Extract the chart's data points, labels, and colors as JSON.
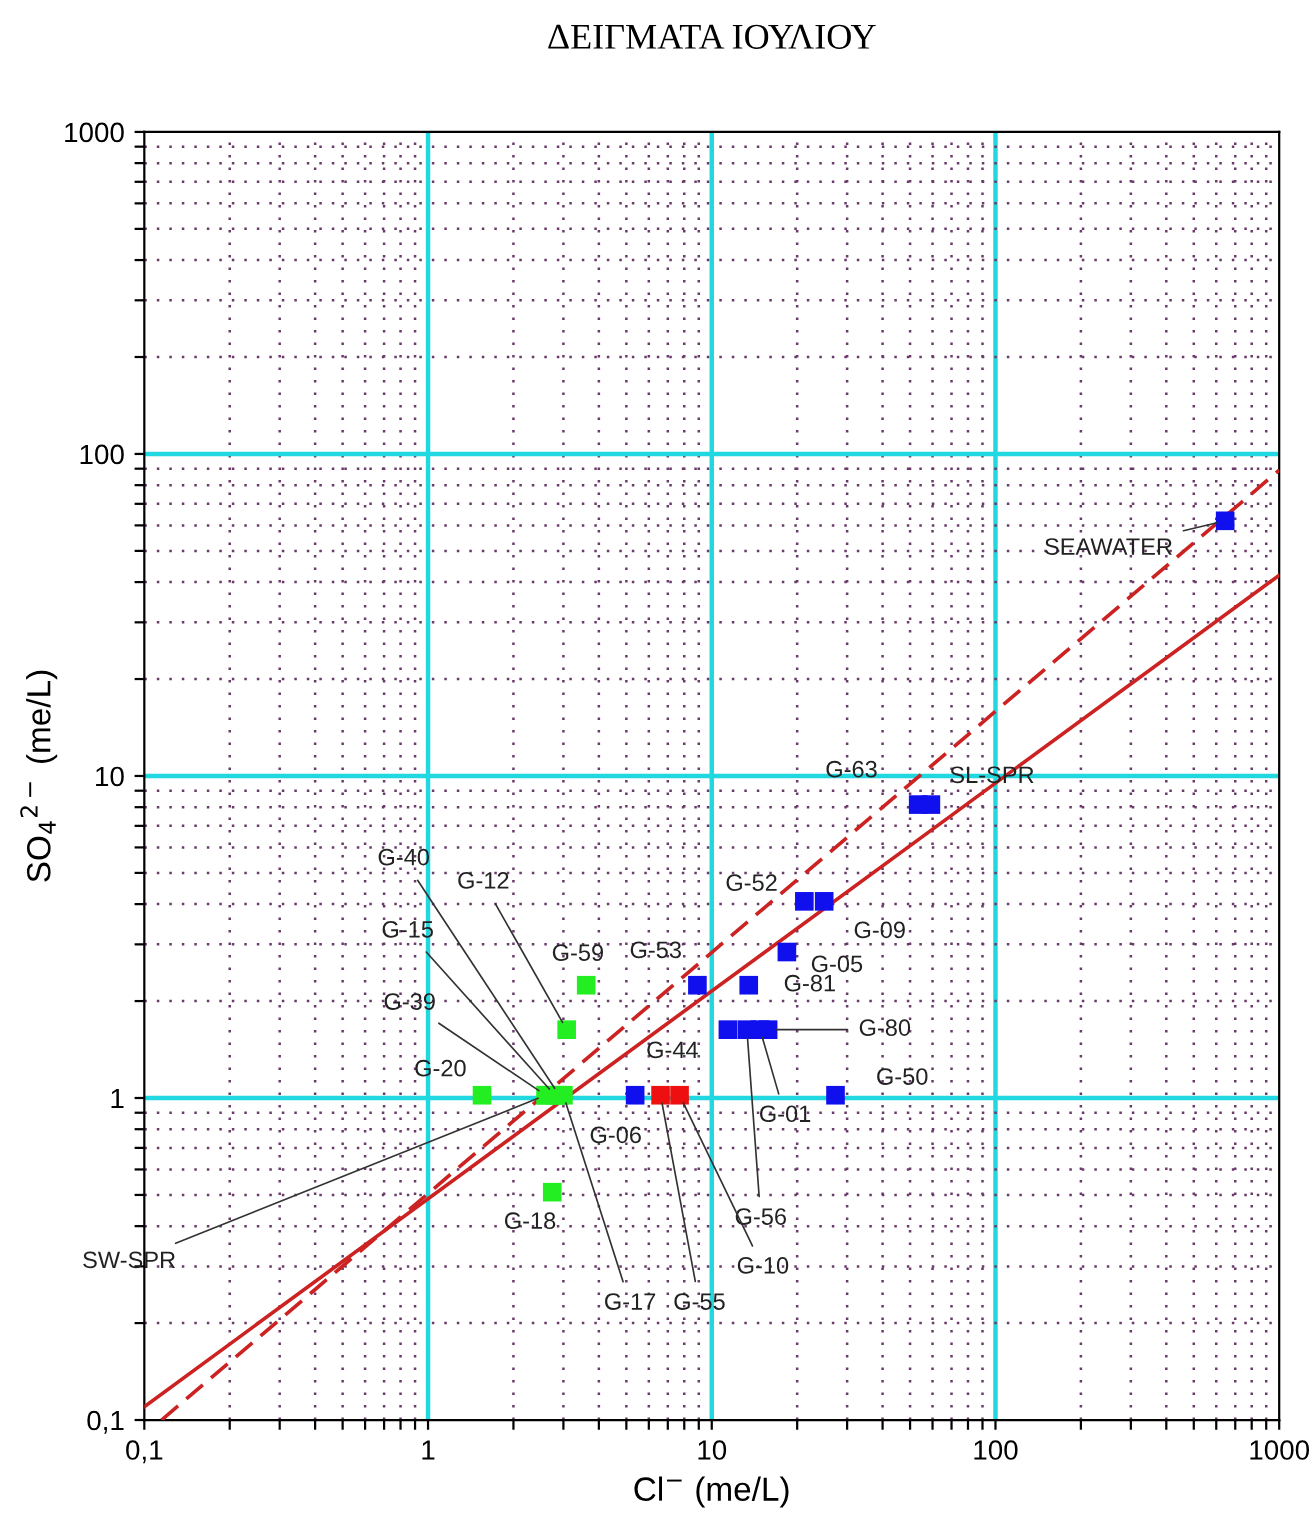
{
  "chart_data": {
    "type": "scatter",
    "title": "ΔΕΙΓΜΑΤΑ ΙΟΥΛΙΟΥ",
    "xlabel": "Cl$^{−}$ (me/L)",
    "ylabel": "SO$_{4}$$^{2−}$ (me/L)",
    "log": "xy",
    "xlim": [
      0.1,
      1000
    ],
    "ylim": [
      0.1,
      1000
    ],
    "xticks": [
      {
        "value": 0.1,
        "label": "0,1"
      },
      {
        "value": 0.2,
        "label": null
      },
      {
        "value": 0.3,
        "label": null
      },
      {
        "value": 0.4,
        "label": null
      },
      {
        "value": 0.5,
        "label": null
      },
      {
        "value": 0.6,
        "label": null
      },
      {
        "value": 0.7,
        "label": null
      },
      {
        "value": 0.8,
        "label": null
      },
      {
        "value": 0.9,
        "label": null
      },
      1,
      {
        "value": 2,
        "label": null
      },
      {
        "value": 3,
        "label": null
      },
      {
        "value": 4,
        "label": null
      },
      {
        "value": 5,
        "label": null
      },
      {
        "value": 6,
        "label": null
      },
      {
        "value": 7,
        "label": null
      },
      {
        "value": 8,
        "label": null
      },
      {
        "value": 9,
        "label": null
      },
      10,
      {
        "value": 20,
        "label": null
      },
      {
        "value": 30,
        "label": null
      },
      {
        "value": 40,
        "label": null
      },
      {
        "value": 50,
        "label": null
      },
      {
        "value": 60,
        "label": null
      },
      {
        "value": 70,
        "label": null
      },
      {
        "value": 80,
        "label": null
      },
      {
        "value": 90,
        "label": null
      },
      100,
      {
        "value": 200,
        "label": null
      },
      {
        "value": 300,
        "label": null
      },
      {
        "value": 400,
        "label": null
      },
      {
        "value": 500,
        "label": null
      },
      {
        "value": 600,
        "label": null
      },
      {
        "value": 700,
        "label": null
      },
      {
        "value": 800,
        "label": null
      },
      {
        "value": 900,
        "label": null
      },
      1000
    ],
    "yticks": [
      {
        "value": 0.1,
        "label": "0,1"
      },
      {
        "value": 0.2,
        "label": null
      },
      {
        "value": 0.3,
        "label": null
      },
      {
        "value": 0.4,
        "label": null
      },
      {
        "value": 0.5,
        "label": null
      },
      {
        "value": 0.6,
        "label": null
      },
      {
        "value": 0.7,
        "label": null
      },
      {
        "value": 0.8,
        "label": null
      },
      {
        "value": 0.9,
        "label": null
      },
      1,
      {
        "value": 2,
        "label": null
      },
      {
        "value": 3,
        "label": null
      },
      {
        "value": 4,
        "label": null
      },
      {
        "value": 5,
        "label": null
      },
      {
        "value": 6,
        "label": null
      },
      {
        "value": 7,
        "label": null
      },
      {
        "value": 8,
        "label": null
      },
      {
        "value": 9,
        "label": null
      },
      10,
      {
        "value": 20,
        "label": null
      },
      {
        "value": 30,
        "label": null
      },
      {
        "value": 40,
        "label": null
      },
      {
        "value": 50,
        "label": null
      },
      {
        "value": 60,
        "label": null
      },
      {
        "value": 70,
        "label": null
      },
      {
        "value": 80,
        "label": null
      },
      {
        "value": 90,
        "label": null
      },
      100,
      {
        "value": 200,
        "label": null
      },
      {
        "value": 300,
        "label": null
      },
      {
        "value": 400,
        "label": null
      },
      {
        "value": 500,
        "label": null
      },
      {
        "value": 600,
        "label": null
      },
      {
        "value": 700,
        "label": null
      },
      {
        "value": 800,
        "label": null
      },
      {
        "value": 900,
        "label": null
      },
      1000
    ],
    "grid": true,
    "series": [
      {
        "color": "#22ee22",
        "marker": "square",
        "x": [
          3.61,
          3.08,
          2.9,
          2.8,
          2.6,
          1.55,
          3.0,
          2.74,
          2.6
        ],
        "values": [
          2.24,
          1.63,
          1.02,
          1.02,
          1.02,
          1.02,
          1.02,
          0.51,
          1.02
        ],
        "value_labels": [
          "G-59",
          "G-12",
          "G-40",
          "G-15",
          "G-39",
          "G-20",
          "G-17",
          "G-18",
          "SW-SPR"
        ]
      },
      {
        "color": "#1010ee",
        "marker": "square",
        "x": [
          5.37,
          8.9,
          13.5,
          11.4,
          13.3,
          14.8,
          15.8,
          27.3,
          18.4,
          21.2,
          24.9,
          53.4,
          59.2,
          645
        ],
        "values": [
          1.02,
          2.24,
          2.24,
          1.63,
          1.63,
          1.63,
          1.63,
          1.02,
          2.84,
          4.08,
          4.08,
          8.15,
          8.15,
          62
        ],
        "value_labels": [
          "G-06",
          "G-53",
          "G-81",
          "G-44",
          "G-56",
          "G-01",
          "G-80",
          "G-50",
          "G-05",
          "G-52",
          "G-09",
          "G-63",
          "SL-SPR",
          "SEAWATER"
        ]
      },
      {
        "color": "#ee1010",
        "marker": "square",
        "x": [
          6.6,
          7.7
        ],
        "values": [
          1.02,
          1.02
        ],
        "value_labels": [
          "G-55",
          "G-10"
        ]
      },
      {
        "type": "line",
        "color": "#cc2222",
        "line_style": "solid",
        "x": [
          0.1,
          1000
        ],
        "values": [
          0.11,
          42
        ]
      },
      {
        "type": "line",
        "color": "#cc2222",
        "line_style": "dashed",
        "x": [
          0.115,
          1000
        ],
        "values": [
          0.1,
          89
        ]
      }
    ]
  }
}
